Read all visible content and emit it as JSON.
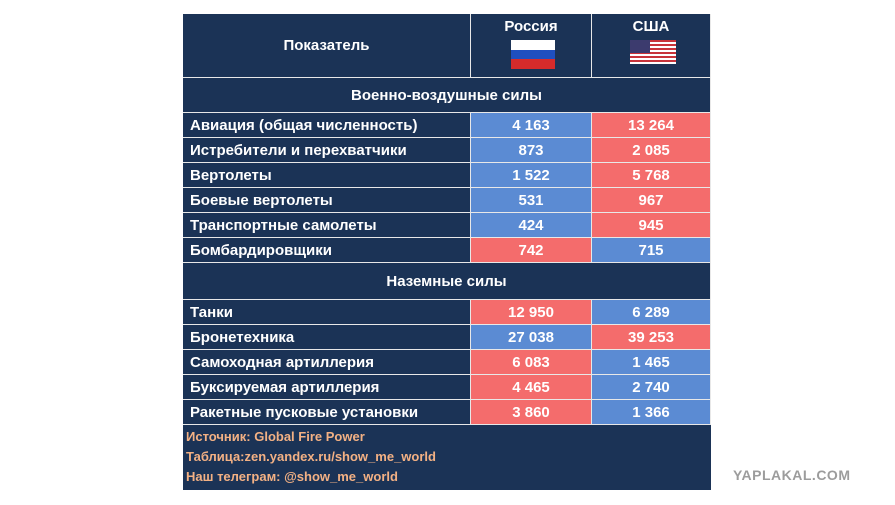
{
  "header": {
    "indicator": "Показатель",
    "russia": "Россия",
    "usa": "США"
  },
  "sections": [
    {
      "title": "Военно-воздушные силы",
      "rows": [
        {
          "label": "Авиация (общая численность)",
          "values": [
            "4 163",
            "13 264"
          ],
          "colors": [
            "#5b8bd3",
            "#f46c6c"
          ]
        },
        {
          "label": "Истребители и перехватчики",
          "values": [
            "873",
            "2 085"
          ],
          "colors": [
            "#5b8bd3",
            "#f46c6c"
          ]
        },
        {
          "label": "Вертолеты",
          "values": [
            "1 522",
            "5 768"
          ],
          "colors": [
            "#5b8bd3",
            "#f46c6c"
          ]
        },
        {
          "label": "Боевые вертолеты",
          "values": [
            "531",
            "967"
          ],
          "colors": [
            "#5b8bd3",
            "#f46c6c"
          ]
        },
        {
          "label": "Транспортные самолеты",
          "values": [
            "424",
            "945"
          ],
          "colors": [
            "#5b8bd3",
            "#f46c6c"
          ]
        },
        {
          "label": "Бомбардировщики",
          "values": [
            "742",
            "715"
          ],
          "colors": [
            "#f46c6c",
            "#5b8bd3"
          ]
        }
      ]
    },
    {
      "title": "Наземные силы",
      "rows": [
        {
          "label": "Танки",
          "values": [
            "12 950",
            "6 289"
          ],
          "colors": [
            "#f46c6c",
            "#5b8bd3"
          ]
        },
        {
          "label": "Бронетехника",
          "values": [
            "27 038",
            "39 253"
          ],
          "colors": [
            "#5b8bd3",
            "#f46c6c"
          ]
        },
        {
          "label": "Самоходная артиллерия",
          "values": [
            "6 083",
            "1 465"
          ],
          "colors": [
            "#f46c6c",
            "#5b8bd3"
          ]
        },
        {
          "label": "Буксируемая артиллерия",
          "values": [
            "4 465",
            "2 740"
          ],
          "colors": [
            "#f46c6c",
            "#5b8bd3"
          ]
        },
        {
          "label": "Ракетные пусковые установки",
          "values": [
            "3 860",
            "1 366"
          ],
          "colors": [
            "#f46c6c",
            "#5b8bd3"
          ]
        }
      ]
    }
  ],
  "footer": [
    "Источник: Global Fire Power",
    "Таблица:zen.yandex.ru/show_me_world",
    "Наш телеграм: @show_me_world"
  ],
  "watermark": "YAPLAKAL.COM"
}
